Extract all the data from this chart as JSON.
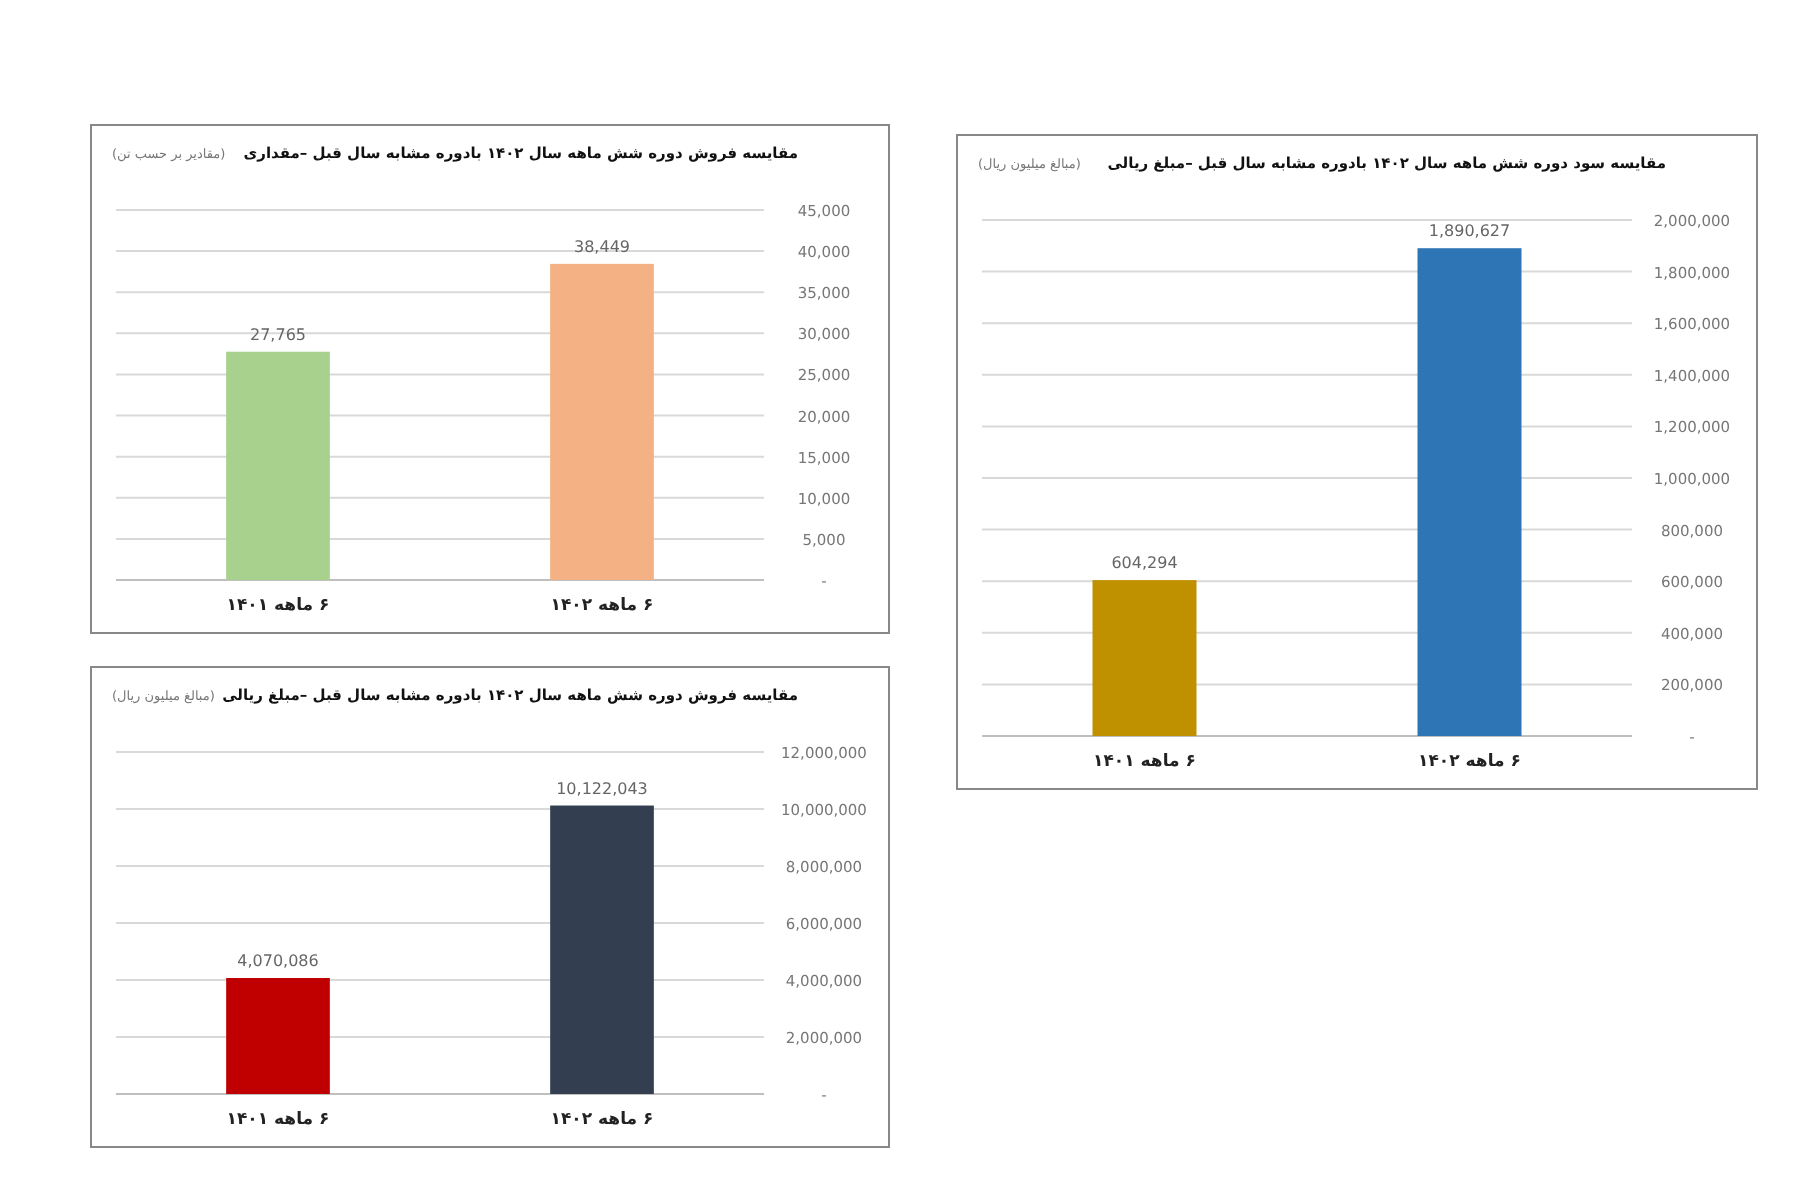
{
  "chart_data": [
    {
      "type": "bar",
      "title": "مقایسه فروش دوره شش ماهه سال ۱۴۰۲ بادوره مشابه سال قبل –مقداری",
      "subtitle": "(مقادیر بر حسب تن)",
      "categories": [
        "۶ ماهه ۱۴۰۱",
        "۶ ماهه ۱۴۰۲"
      ],
      "values": [
        27765,
        38449
      ],
      "value_labels": [
        "27,765",
        "38,449"
      ],
      "colors": [
        "#a9d18e",
        "#f4b183"
      ],
      "ylim": [
        0,
        45000
      ],
      "yticks": [
        {
          "value": 0,
          "label": "-"
        },
        {
          "value": 5000,
          "label": "5,000"
        },
        {
          "value": 10000,
          "label": "10,000"
        },
        {
          "value": 15000,
          "label": "15,000"
        },
        {
          "value": 20000,
          "label": "20,000"
        },
        {
          "value": 25000,
          "label": "25,000"
        },
        {
          "value": 30000,
          "label": "30,000"
        },
        {
          "value": 35000,
          "label": "35,000"
        },
        {
          "value": 40000,
          "label": "40,000"
        },
        {
          "value": 45000,
          "label": "45,000"
        }
      ],
      "grid": "y"
    },
    {
      "type": "bar",
      "title": "مقایسه سود دوره شش ماهه سال ۱۴۰۲ بادوره مشابه سال قبل –مبلغ ریالی",
      "subtitle": "(مبالغ میلیون ریال)",
      "categories": [
        "۶ ماهه ۱۴۰۱",
        "۶ ماهه ۱۴۰۲"
      ],
      "values": [
        604294,
        1890627
      ],
      "value_labels": [
        "604,294",
        "1,890,627"
      ],
      "colors": [
        "#bf9000",
        "#2e75b6"
      ],
      "ylim": [
        0,
        2000000
      ],
      "yticks": [
        {
          "value": 0,
          "label": "-"
        },
        {
          "value": 200000,
          "label": "200,000"
        },
        {
          "value": 400000,
          "label": "400,000"
        },
        {
          "value": 600000,
          "label": "600,000"
        },
        {
          "value": 800000,
          "label": "800,000"
        },
        {
          "value": 1000000,
          "label": "1,000,000"
        },
        {
          "value": 1200000,
          "label": "1,200,000"
        },
        {
          "value": 1400000,
          "label": "1,400,000"
        },
        {
          "value": 1600000,
          "label": "1,600,000"
        },
        {
          "value": 1800000,
          "label": "1,800,000"
        },
        {
          "value": 2000000,
          "label": "2,000,000"
        }
      ],
      "grid": "y"
    },
    {
      "type": "bar",
      "title": "مقایسه فروش دوره شش ماهه سال ۱۴۰۲ بادوره مشابه سال قبل –مبلغ ریالی",
      "subtitle": "(مبالغ میلیون ریال)",
      "categories": [
        "۶ ماهه ۱۴۰۱",
        "۶ ماهه ۱۴۰۲"
      ],
      "values": [
        4070086,
        10122043
      ],
      "value_labels": [
        "4,070,086",
        "10,122,043"
      ],
      "colors": [
        "#c00000",
        "#333f50"
      ],
      "ylim": [
        0,
        12000000
      ],
      "yticks": [
        {
          "value": 0,
          "label": "-"
        },
        {
          "value": 2000000,
          "label": "2,000,000"
        },
        {
          "value": 4000000,
          "label": "4,000,000"
        },
        {
          "value": 6000000,
          "label": "6,000,000"
        },
        {
          "value": 8000000,
          "label": "8,000,000"
        },
        {
          "value": 10000000,
          "label": "10,000,000"
        },
        {
          "value": 12000000,
          "label": "12,000,000"
        }
      ],
      "grid": "y"
    }
  ]
}
